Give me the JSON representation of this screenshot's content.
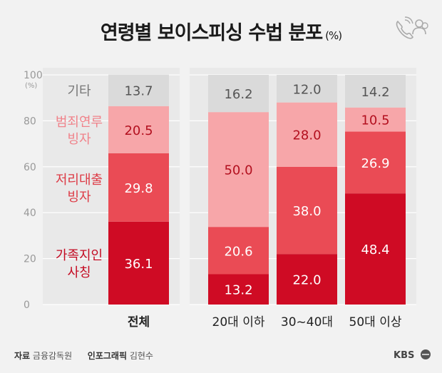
{
  "title": "연령별 보이스피싱 수법 분포",
  "title_unit": "(%)",
  "footer": {
    "source_label": "자료",
    "source": "금융감독원",
    "graphic_label": "인포그래픽",
    "graphic_author": "김현수"
  },
  "logo": "KBS",
  "chart_data": {
    "type": "bar",
    "stacked": true,
    "title": "연령별 보이스피싱 수법 분포",
    "ylabel": "(%)",
    "ylim": [
      0,
      100
    ],
    "yticks": [
      0,
      20,
      40,
      60,
      80,
      100
    ],
    "categories": [
      "전체",
      "20대 이하",
      "30~40대",
      "50대 이상"
    ],
    "series": [
      {
        "name": "가족지인 사칭",
        "label_lines": [
          "가족지인",
          "사칭"
        ],
        "color": "#cf0b24",
        "values": [
          36.1,
          13.2,
          22.0,
          48.4
        ]
      },
      {
        "name": "저리대출 빙자",
        "label_lines": [
          "저리대출",
          "빙자"
        ],
        "color": "#ea4b55",
        "values": [
          29.8,
          20.6,
          38.0,
          26.9
        ]
      },
      {
        "name": "범죄연루 빙자",
        "label_lines": [
          "범죄연루",
          "빙자"
        ],
        "color": "#f7a6a9",
        "values": [
          20.5,
          50.0,
          28.0,
          10.5
        ]
      },
      {
        "name": "기타",
        "label_lines": [
          "기타"
        ],
        "color": "#dadada",
        "values": [
          13.7,
          16.2,
          12.0,
          14.2
        ]
      }
    ],
    "value_labels": [
      [
        "36.1",
        "13.2",
        "22.0",
        "48.4"
      ],
      [
        "29.8",
        "20.6",
        "38.0",
        "26.9"
      ],
      [
        "20.5",
        "50.0",
        "28.0",
        "10.5"
      ],
      [
        "13.7",
        "16.2",
        "12.0",
        "14.2"
      ]
    ],
    "legend": "left (inside chart)"
  }
}
